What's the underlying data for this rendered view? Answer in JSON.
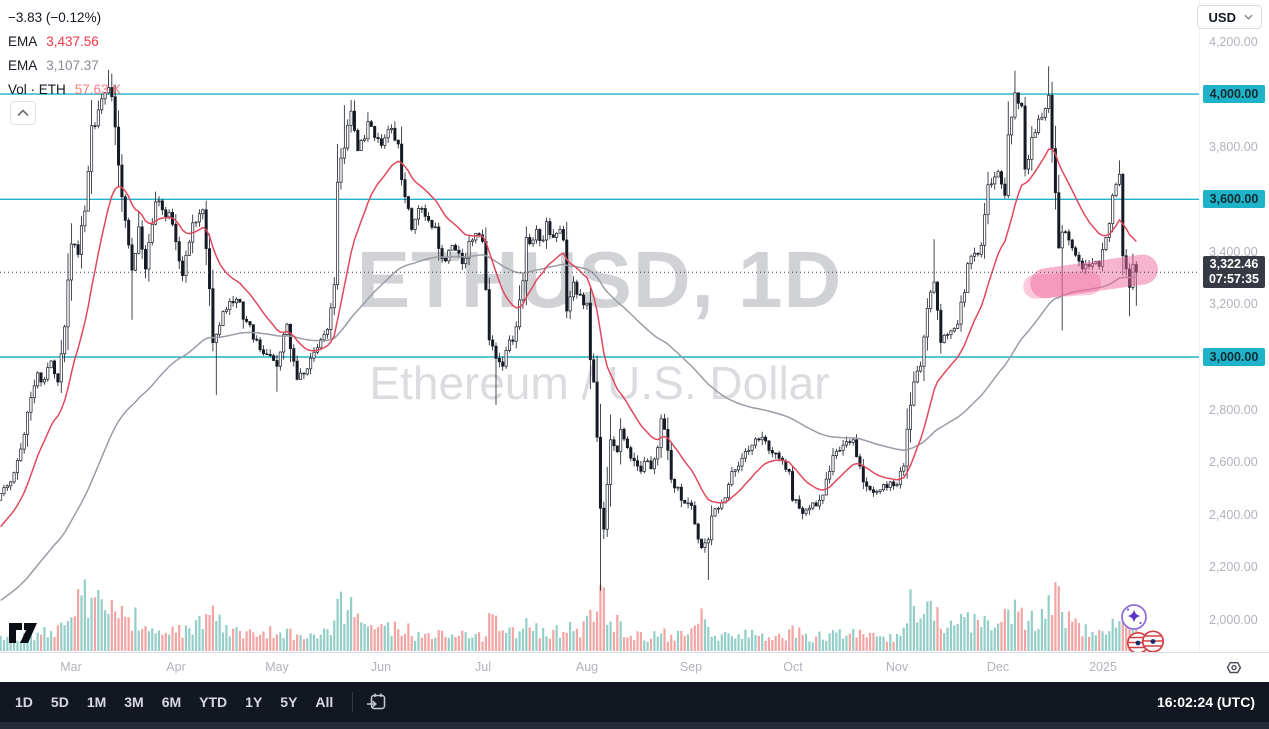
{
  "legend": {
    "change": "−3.83 (−0.12%)",
    "ema_fast_label": "EMA",
    "ema_fast_value": "3,437.56",
    "ema_slow_label": "EMA",
    "ema_slow_value": "3,107.37",
    "vol_label": "Vol · ETH",
    "vol_value": "57.63 K"
  },
  "currency_button": {
    "label": "USD"
  },
  "watermark": {
    "line1": "ETHUSD, 1D",
    "line2": "Ethereum / U.S. Dollar"
  },
  "price_axis": {
    "gray_ticks": [
      4200,
      3800,
      3400,
      3200,
      2800,
      2600,
      2400,
      2200,
      2000
    ],
    "level_ticks": [
      4000,
      3600,
      3000
    ],
    "last_price_display": "3,322.46",
    "countdown": "07:57:35"
  },
  "time_axis": {
    "months": [
      {
        "label": "Mar",
        "day": 21
      },
      {
        "label": "Apr",
        "day": 52
      },
      {
        "label": "May",
        "day": 82
      },
      {
        "label": "Jun",
        "day": 113
      },
      {
        "label": "Jul",
        "day": 143
      },
      {
        "label": "Aug",
        "day": 174
      },
      {
        "label": "Sep",
        "day": 205
      },
      {
        "label": "Oct",
        "day": 235
      },
      {
        "label": "Nov",
        "day": 266
      },
      {
        "label": "Dec",
        "day": 296
      },
      {
        "label": "2025",
        "day": 327
      }
    ]
  },
  "toolbar": {
    "ranges": [
      "1D",
      "5D",
      "1M",
      "3M",
      "6M",
      "YTD",
      "1Y",
      "5Y",
      "All"
    ],
    "clock": "16:02:24 (UTC)"
  },
  "colors": {
    "accent_cyan": "#1eb3c9",
    "level_label_bg": "#1eb3c9",
    "candle": "#161a25",
    "vol_up": "#94cec8",
    "vol_down": "#f2a5a3",
    "ema_fast": "#e0485e",
    "ema_slow": "#9a9da6",
    "badge_bg": "#363a45",
    "annotation_pink": "#f0699e",
    "dotted_line": "#3c404b"
  },
  "chart_data": {
    "type": "candlestick",
    "symbol": "ETHUSD",
    "interval": "1D",
    "title": "Ethereum / U.S. Dollar, daily candles with EMA fast (red) and EMA slow (gray), volume underlay",
    "x0_date": "2024-02-09",
    "days": 338,
    "ylim": [
      1878,
      4358
    ],
    "levels": [
      4000,
      3600,
      3000
    ],
    "current_price": 3322.46,
    "ema_fast_period": 18,
    "ema_slow_period": 90,
    "ema_fast_seed": 2340,
    "ema_slow_seed": 2065,
    "ema_fast_last": 3437.56,
    "ema_slow_last": 3107.37,
    "close_anchors": [
      [
        0,
        2480
      ],
      [
        2,
        2510
      ],
      [
        4,
        2560
      ],
      [
        6,
        2650
      ],
      [
        8,
        2790
      ],
      [
        10,
        2890
      ],
      [
        11,
        2940
      ],
      [
        13,
        2915
      ],
      [
        15,
        2985
      ],
      [
        17,
        2905
      ],
      [
        19,
        3115
      ],
      [
        21,
        3430
      ],
      [
        23,
        3390
      ],
      [
        25,
        3555
      ],
      [
        27,
        3880
      ],
      [
        29,
        3940
      ],
      [
        31,
        4005
      ],
      [
        32,
        4025
      ],
      [
        33,
        3990
      ],
      [
        35,
        3730
      ],
      [
        37,
        3520
      ],
      [
        39,
        3330
      ],
      [
        41,
        3495
      ],
      [
        43,
        3335
      ],
      [
        45,
        3505
      ],
      [
        46,
        3590
      ],
      [
        48,
        3560
      ],
      [
        51,
        3505
      ],
      [
        53,
        3365
      ],
      [
        54,
        3310
      ],
      [
        57,
        3510
      ],
      [
        59,
        3545
      ],
      [
        60,
        3560
      ],
      [
        62,
        3260
      ],
      [
        63,
        3055
      ],
      [
        65,
        3120
      ],
      [
        67,
        3180
      ],
      [
        70,
        3220
      ],
      [
        73,
        3135
      ],
      [
        76,
        3065
      ],
      [
        79,
        3010
      ],
      [
        82,
        2965
      ],
      [
        85,
        3125
      ],
      [
        88,
        2915
      ],
      [
        91,
        2955
      ],
      [
        94,
        3035
      ],
      [
        97,
        3105
      ],
      [
        99,
        3275
      ],
      [
        100,
        3665
      ],
      [
        102,
        3795
      ],
      [
        104,
        3935
      ],
      [
        106,
        3785
      ],
      [
        108,
        3830
      ],
      [
        109,
        3895
      ],
      [
        111,
        3835
      ],
      [
        113,
        3805
      ],
      [
        116,
        3870
      ],
      [
        118,
        3810
      ],
      [
        119,
        3675
      ],
      [
        121,
        3565
      ],
      [
        122,
        3485
      ],
      [
        125,
        3565
      ],
      [
        127,
        3520
      ],
      [
        129,
        3495
      ],
      [
        131,
        3375
      ],
      [
        134,
        3425
      ],
      [
        136,
        3395
      ],
      [
        137,
        3355
      ],
      [
        140,
        3445
      ],
      [
        142,
        3465
      ],
      [
        143,
        3440
      ],
      [
        145,
        3065
      ],
      [
        147,
        2995
      ],
      [
        149,
        2965
      ],
      [
        150,
        3025
      ],
      [
        152,
        3060
      ],
      [
        153,
        3115
      ],
      [
        155,
        3290
      ],
      [
        156,
        3455
      ],
      [
        158,
        3445
      ],
      [
        159,
        3485
      ],
      [
        161,
        3445
      ],
      [
        162,
        3515
      ],
      [
        164,
        3455
      ],
      [
        166,
        3485
      ],
      [
        167,
        3445
      ],
      [
        168,
        3175
      ],
      [
        170,
        3285
      ],
      [
        172,
        3235
      ],
      [
        174,
        3205
      ],
      [
        175,
        2990
      ],
      [
        176,
        2905
      ],
      [
        177,
        2695
      ],
      [
        178,
        2425
      ],
      [
        179,
        2345
      ],
      [
        180,
        2515
      ],
      [
        181,
        2685
      ],
      [
        183,
        2640
      ],
      [
        184,
        2725
      ],
      [
        186,
        2655
      ],
      [
        187,
        2615
      ],
      [
        189,
        2585
      ],
      [
        190,
        2565
      ],
      [
        192,
        2605
      ],
      [
        193,
        2575
      ],
      [
        195,
        2655
      ],
      [
        196,
        2765
      ],
      [
        198,
        2645
      ],
      [
        199,
        2535
      ],
      [
        201,
        2505
      ],
      [
        202,
        2455
      ],
      [
        204,
        2445
      ],
      [
        205,
        2435
      ],
      [
        206,
        2365
      ],
      [
        208,
        2275
      ],
      [
        210,
        2305
      ],
      [
        211,
        2395
      ],
      [
        213,
        2425
      ],
      [
        214,
        2445
      ],
      [
        216,
        2515
      ],
      [
        217,
        2565
      ],
      [
        219,
        2585
      ],
      [
        220,
        2615
      ],
      [
        222,
        2645
      ],
      [
        223,
        2665
      ],
      [
        225,
        2685
      ],
      [
        226,
        2695
      ],
      [
        228,
        2645
      ],
      [
        229,
        2635
      ],
      [
        231,
        2615
      ],
      [
        232,
        2605
      ],
      [
        234,
        2565
      ],
      [
        235,
        2455
      ],
      [
        237,
        2425
      ],
      [
        238,
        2405
      ],
      [
        240,
        2425
      ],
      [
        241,
        2445
      ],
      [
        243,
        2455
      ],
      [
        244,
        2475
      ],
      [
        246,
        2565
      ],
      [
        247,
        2625
      ],
      [
        249,
        2645
      ],
      [
        250,
        2665
      ],
      [
        252,
        2675
      ],
      [
        253,
        2685
      ],
      [
        255,
        2585
      ],
      [
        256,
        2525
      ],
      [
        258,
        2495
      ],
      [
        259,
        2485
      ],
      [
        261,
        2495
      ],
      [
        262,
        2515
      ],
      [
        264,
        2525
      ],
      [
        266,
        2515
      ],
      [
        268,
        2585
      ],
      [
        269,
        2725
      ],
      [
        271,
        2905
      ],
      [
        273,
        2965
      ],
      [
        275,
        3185
      ],
      [
        277,
        3285
      ],
      [
        279,
        3055
      ],
      [
        281,
        3085
      ],
      [
        284,
        3125
      ],
      [
        286,
        3245
      ],
      [
        287,
        3355
      ],
      [
        289,
        3395
      ],
      [
        291,
        3425
      ],
      [
        293,
        3655
      ],
      [
        295,
        3685
      ],
      [
        296,
        3705
      ],
      [
        298,
        3615
      ],
      [
        299,
        3845
      ],
      [
        301,
        4005
      ],
      [
        302,
        3965
      ],
      [
        303,
        3955
      ],
      [
        304,
        3715
      ],
      [
        306,
        3835
      ],
      [
        308,
        3905
      ],
      [
        310,
        3945
      ],
      [
        311,
        3995
      ],
      [
        313,
        3625
      ],
      [
        314,
        3415
      ],
      [
        315,
        3475
      ],
      [
        317,
        3445
      ],
      [
        318,
        3415
      ],
      [
        320,
        3365
      ],
      [
        321,
        3335
      ],
      [
        323,
        3345
      ],
      [
        324,
        3355
      ],
      [
        326,
        3345
      ],
      [
        328,
        3455
      ],
      [
        330,
        3615
      ],
      [
        332,
        3695
      ],
      [
        333,
        3385
      ],
      [
        334,
        3335
      ],
      [
        335,
        3265
      ],
      [
        336,
        3352
      ],
      [
        337,
        3322.46
      ]
    ],
    "wick_overrides": [
      [
        32,
        4092,
        null
      ],
      [
        33,
        4078,
        null
      ],
      [
        39,
        null,
        3142
      ],
      [
        64,
        null,
        2856
      ],
      [
        82,
        null,
        2868
      ],
      [
        102,
        3958,
        null
      ],
      [
        104,
        3978,
        null
      ],
      [
        147,
        null,
        2818
      ],
      [
        178,
        null,
        2111
      ],
      [
        210,
        null,
        2152
      ],
      [
        277,
        3448,
        null
      ],
      [
        301,
        4089,
        null
      ],
      [
        311,
        4106,
        null
      ],
      [
        315,
        null,
        3101
      ],
      [
        332,
        3748,
        null
      ],
      [
        335,
        null,
        3155
      ],
      [
        337,
        null,
        3195
      ]
    ],
    "volume_anchors_k": [
      [
        0,
        28
      ],
      [
        8,
        40
      ],
      [
        11,
        52
      ],
      [
        15,
        38
      ],
      [
        19,
        60
      ],
      [
        21,
        85
      ],
      [
        25,
        180
      ],
      [
        27,
        125
      ],
      [
        30,
        105
      ],
      [
        32,
        108
      ],
      [
        35,
        88
      ],
      [
        39,
        96
      ],
      [
        43,
        55
      ],
      [
        46,
        60
      ],
      [
        51,
        48
      ],
      [
        57,
        52
      ],
      [
        63,
        92
      ],
      [
        67,
        50
      ],
      [
        70,
        44
      ],
      [
        76,
        38
      ],
      [
        82,
        56
      ],
      [
        85,
        44
      ],
      [
        88,
        40
      ],
      [
        94,
        36
      ],
      [
        99,
        70
      ],
      [
        100,
        148
      ],
      [
        102,
        118
      ],
      [
        104,
        98
      ],
      [
        109,
        62
      ],
      [
        113,
        58
      ],
      [
        119,
        56
      ],
      [
        125,
        44
      ],
      [
        131,
        40
      ],
      [
        137,
        38
      ],
      [
        143,
        44
      ],
      [
        145,
        86
      ],
      [
        147,
        68
      ],
      [
        150,
        48
      ],
      [
        156,
        60
      ],
      [
        162,
        52
      ],
      [
        166,
        48
      ],
      [
        168,
        74
      ],
      [
        172,
        46
      ],
      [
        174,
        66
      ],
      [
        177,
        118
      ],
      [
        178,
        188
      ],
      [
        180,
        96
      ],
      [
        184,
        62
      ],
      [
        190,
        40
      ],
      [
        196,
        46
      ],
      [
        202,
        38
      ],
      [
        205,
        48
      ],
      [
        208,
        78
      ],
      [
        214,
        42
      ],
      [
        220,
        38
      ],
      [
        226,
        44
      ],
      [
        232,
        36
      ],
      [
        235,
        54
      ],
      [
        241,
        34
      ],
      [
        247,
        40
      ],
      [
        253,
        42
      ],
      [
        259,
        34
      ],
      [
        266,
        38
      ],
      [
        269,
        92
      ],
      [
        271,
        132
      ],
      [
        275,
        112
      ],
      [
        277,
        92
      ],
      [
        281,
        60
      ],
      [
        284,
        68
      ],
      [
        287,
        74
      ],
      [
        291,
        64
      ],
      [
        293,
        88
      ],
      [
        296,
        72
      ],
      [
        299,
        108
      ],
      [
        301,
        122
      ],
      [
        304,
        98
      ],
      [
        308,
        78
      ],
      [
        311,
        112
      ],
      [
        313,
        148
      ],
      [
        315,
        92
      ],
      [
        318,
        70
      ],
      [
        321,
        58
      ],
      [
        326,
        46
      ],
      [
        328,
        62
      ],
      [
        330,
        80
      ],
      [
        332,
        92
      ],
      [
        333,
        88
      ],
      [
        335,
        72
      ],
      [
        336,
        64
      ],
      [
        337,
        57.63
      ]
    ],
    "annotation": {
      "type": "pink-brush-highlight",
      "strokes": [
        {
          "d1": 310,
          "p1": 3280,
          "d2": 339,
          "p2": 3333,
          "width": 30,
          "opacity": 0.5
        },
        {
          "d1": 307,
          "p1": 3268,
          "d2": 323,
          "p2": 3282,
          "width": 24,
          "opacity": 0.35
        }
      ]
    }
  }
}
